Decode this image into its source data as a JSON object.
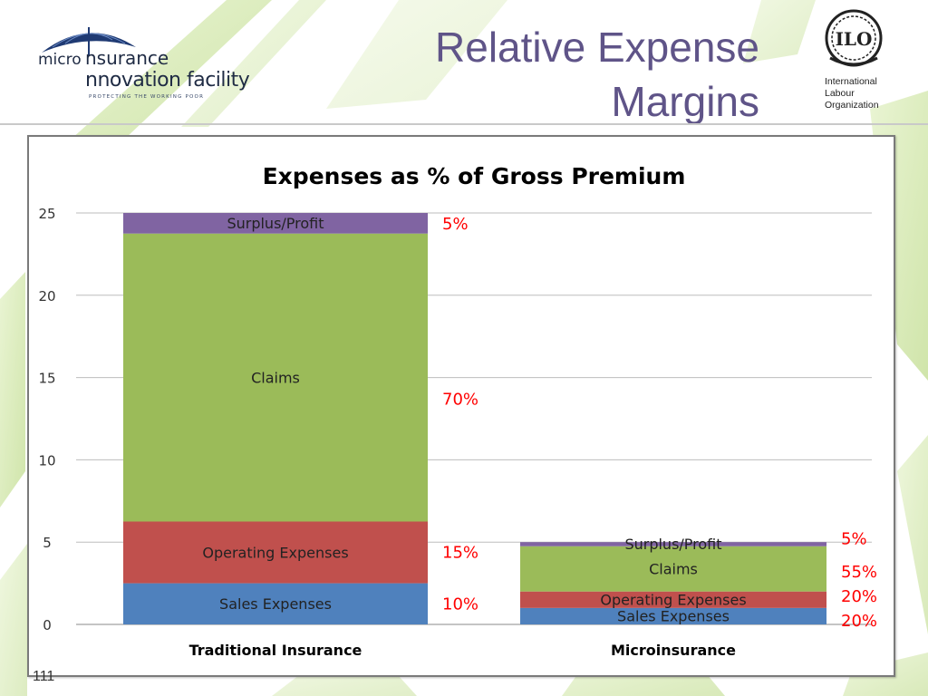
{
  "slide": {
    "title_line1": "Relative Expense",
    "title_line2": "Margins",
    "page_number": "111"
  },
  "logos": {
    "mif": {
      "word_micro": "micro",
      "word_insurance": "nsurance",
      "word_innovation": "nnovation facility",
      "tagline": "PROTECTING THE WORKING POOR"
    },
    "ilo": {
      "emblem_text": "ILO",
      "line1": "International",
      "line2": "Labour",
      "line3": "Organization"
    }
  },
  "colors": {
    "title": "#5f5488",
    "sales": "#4f81bd",
    "operating": "#c0504d",
    "claims": "#9bbb59",
    "surplus": "#8064a2",
    "percent_label": "#ff0000",
    "background_leaf": "#b6d77a"
  },
  "chart_data": {
    "type": "bar",
    "stacked": true,
    "title": "Expenses as % of Gross Premium",
    "xlabel": "",
    "ylabel": "",
    "ylim": [
      0,
      25
    ],
    "yticks": [
      0,
      5,
      10,
      15,
      20,
      25
    ],
    "grid": true,
    "legend": "none",
    "categories": [
      "Traditional Insurance",
      "Microinsurance"
    ],
    "series": [
      {
        "name": "Sales Expenses",
        "color": "#4f81bd",
        "values": [
          2.5,
          1.0
        ],
        "percent_labels": [
          "10%",
          "20%"
        ]
      },
      {
        "name": "Operating Expenses",
        "color": "#c0504d",
        "values": [
          3.75,
          1.0
        ],
        "percent_labels": [
          "15%",
          "20%"
        ]
      },
      {
        "name": "Claims",
        "color": "#9bbb59",
        "values": [
          17.5,
          2.75
        ],
        "percent_labels": [
          "70%",
          "55%"
        ]
      },
      {
        "name": "Surplus/Profit",
        "color": "#8064a2",
        "values": [
          1.25,
          0.25
        ],
        "percent_labels": [
          "5%",
          "5%"
        ]
      }
    ]
  }
}
